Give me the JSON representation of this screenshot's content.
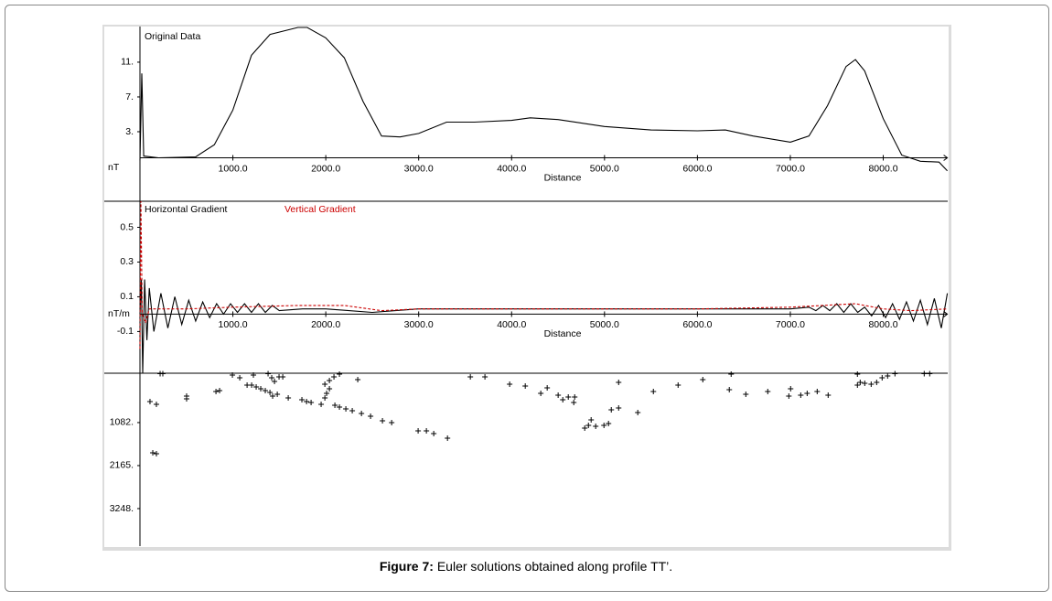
{
  "figure": {
    "caption_label": "Figure 7:",
    "caption_text": "Euler solutions obtained along profile TT’."
  },
  "chart_data": [
    {
      "type": "line",
      "title": "Original Data",
      "y_label": "nT",
      "x_label": "Distance",
      "color": "#000000",
      "x": [
        0,
        20,
        40,
        200,
        600,
        800,
        1000,
        1200,
        1400,
        1700,
        1800,
        2000,
        2200,
        2400,
        2600,
        2800,
        3000,
        3300,
        3600,
        4000,
        4200,
        4500,
        5000,
        5500,
        6000,
        6300,
        6600,
        7000,
        7200,
        7400,
        7600,
        7700,
        7800,
        8000,
        8200,
        8400,
        8600,
        8690
      ],
      "values": [
        -0.3,
        9.7,
        0.2,
        0,
        0.1,
        1.5,
        5.5,
        11.8,
        14.2,
        15,
        15,
        13.8,
        11.5,
        6.5,
        2.5,
        2.4,
        2.8,
        4.1,
        4.1,
        4.3,
        4.6,
        4.4,
        3.6,
        3.2,
        3.1,
        3.2,
        2.5,
        1.8,
        2.5,
        6,
        10.5,
        11.3,
        10,
        4.5,
        0.3,
        -0.4,
        -0.5,
        -1.5
      ],
      "xlim": [
        0,
        8690
      ],
      "ylim": [
        -5,
        15.1
      ],
      "xticks": [
        {
          "value": 1000,
          "label": "1000.0"
        },
        {
          "value": 2000,
          "label": "2000.0"
        },
        {
          "value": 3000,
          "label": "3000.0"
        },
        {
          "value": 4000,
          "label": "4000.0"
        },
        {
          "value": 5000,
          "label": "5000.0"
        },
        {
          "value": 6000,
          "label": "6000.0"
        },
        {
          "value": 7000,
          "label": "7000.0"
        },
        {
          "value": 8000,
          "label": "8000.0"
        }
      ],
      "yticks": [
        {
          "value": 11,
          "label": "11."
        },
        {
          "value": 7,
          "label": "7."
        },
        {
          "value": 3,
          "label": "3."
        }
      ]
    },
    {
      "type": "line",
      "y_label": "nT/m",
      "x_label": "Distance",
      "series": [
        {
          "name": "Horizontal Gradient",
          "color": "#000000",
          "style": "solid",
          "x": [
            0,
            15,
            30,
            50,
            75,
            100,
            150,
            225,
            300,
            375,
            450,
            525,
            600,
            675,
            750,
            825,
            900,
            975,
            1050,
            1125,
            1200,
            1275,
            1350,
            1425,
            1500,
            1750,
            2000,
            2250,
            2500,
            2750,
            3000,
            3500,
            4000,
            5000,
            6000,
            6500,
            7000,
            7200,
            7275,
            7350,
            7425,
            7500,
            7575,
            7650,
            7725,
            7800,
            7875,
            7950,
            8025,
            8100,
            8175,
            8250,
            8325,
            8400,
            8475,
            8550,
            8625,
            8690
          ],
          "values": [
            0,
            0.2,
            -0.34,
            0.2,
            -0.15,
            0.15,
            -0.1,
            0.12,
            -0.08,
            0.1,
            -0.06,
            0.08,
            -0.04,
            0.07,
            -0.02,
            0.06,
            0,
            0.06,
            0.01,
            0.06,
            0.01,
            0.06,
            0.01,
            0.05,
            0.02,
            0.03,
            0.03,
            0.02,
            0.01,
            0.02,
            0.03,
            0.03,
            0.03,
            0.03,
            0.03,
            0.03,
            0.03,
            0.04,
            0.02,
            0.05,
            0.02,
            0.06,
            0.01,
            0.06,
            0.01,
            0.04,
            -0.01,
            0.05,
            -0.02,
            0.06,
            -0.03,
            0.07,
            -0.04,
            0.08,
            -0.06,
            0.09,
            -0.08,
            0.12
          ]
        },
        {
          "name": "Vertical Gradient",
          "color": "#cc0000",
          "style": "dashed",
          "x": [
            0,
            10,
            25,
            60,
            100,
            500,
            1000,
            1700,
            2200,
            2600,
            3000,
            4000,
            5000,
            6000,
            7000,
            7700,
            8000,
            8300,
            8690
          ],
          "values": [
            -0.2,
            0.65,
            0,
            -0.05,
            0.03,
            0.03,
            0.04,
            0.05,
            0.05,
            0.02,
            0.03,
            0.03,
            0.03,
            0.03,
            0.04,
            0.06,
            0.03,
            0.02,
            0.03
          ]
        }
      ],
      "xlim": [
        0,
        8690
      ],
      "ylim": [
        -0.34,
        0.65
      ],
      "xticks": [
        {
          "value": 1000,
          "label": "1000.0"
        },
        {
          "value": 2000,
          "label": "2000.0"
        },
        {
          "value": 3000,
          "label": "3000.0"
        },
        {
          "value": 4000,
          "label": "4000.0"
        },
        {
          "value": 5000,
          "label": "5000.0"
        },
        {
          "value": 6000,
          "label": "6000.0"
        },
        {
          "value": 7000,
          "label": "7000.0"
        },
        {
          "value": 8000,
          "label": "8000.0"
        }
      ],
      "yticks": [
        0.5,
        0.3,
        0.1,
        -0.1
      ]
    },
    {
      "type": "scatter",
      "invert_y": true,
      "color": "#000000",
      "x": [
        108,
        177,
        138,
        177,
        217,
        246,
        502,
        502,
        818,
        857,
        995,
        1074,
        1221,
        1153,
        1202,
        1251,
        1300,
        1349,
        1399,
        1428,
        1478,
        1379,
        1418,
        1448,
        1497,
        1537,
        1596,
        1743,
        1793,
        1842,
        1950,
        1990,
        2009,
        2039,
        1990,
        2039,
        2088,
        2147,
        2098,
        2147,
        2216,
        2285,
        2384,
        2482,
        2610,
        2709,
        2994,
        3083,
        3162,
        3310,
        2344,
        3556,
        3713,
        3979,
        4147,
        4314,
        4383,
        4501,
        4551,
        4610,
        4669,
        4679,
        4787,
        4827,
        4856,
        4905,
        4994,
        5043,
        5073,
        5152,
        5152,
        5358,
        5526,
        5792,
        6058,
        6343,
        6363,
        6521,
        6757,
        6984,
        7003,
        7112,
        7181,
        7289,
        7407,
        7722,
        7722,
        7752,
        7801,
        7870,
        7929,
        7988,
        8047,
        8126,
        8441,
        8500
      ],
      "values": [
        553,
        622,
        1843,
        1866,
        -150,
        -150,
        415,
        484,
        300,
        276,
        -115,
        -46,
        -115,
        138,
        138,
        184,
        230,
        276,
        323,
        415,
        369,
        -150,
        -46,
        46,
        -69,
        -69,
        461,
        507,
        553,
        576,
        622,
        461,
        346,
        230,
        115,
        23,
        -69,
        -138,
        645,
        691,
        737,
        783,
        852,
        922,
        1037,
        1083,
        1290,
        1290,
        1359,
        1475,
        0,
        -69,
        -69,
        115,
        161,
        346,
        207,
        392,
        507,
        438,
        576,
        438,
        1221,
        1152,
        1014,
        1175,
        1152,
        1106,
        760,
        714,
        69,
        829,
        300,
        138,
        0,
        253,
        -138,
        369,
        300,
        415,
        230,
        392,
        346,
        300,
        392,
        -138,
        138,
        69,
        92,
        115,
        69,
        -46,
        -92,
        -150,
        -150,
        -150
      ],
      "xlim": [
        0,
        8690
      ],
      "ylim": [
        -161,
        4193
      ],
      "yticks": [
        {
          "value": 1082,
          "label": "1082."
        },
        {
          "value": 2165,
          "label": "2165."
        },
        {
          "value": 3248,
          "label": "3248."
        }
      ]
    }
  ]
}
